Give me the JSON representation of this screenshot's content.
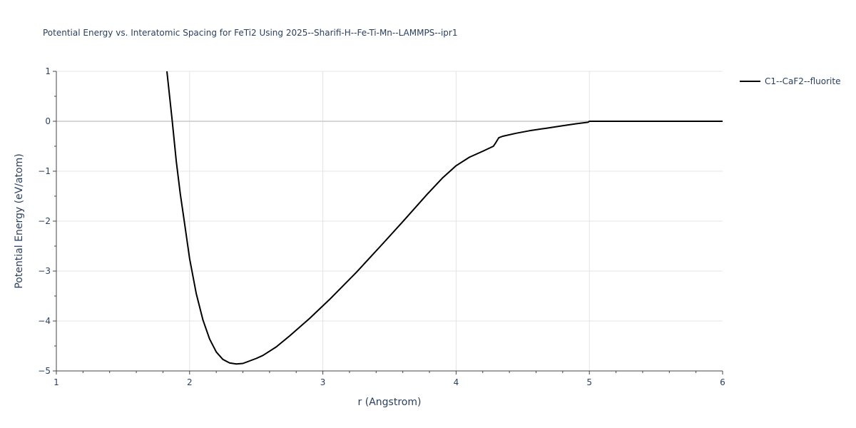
{
  "chart_data": {
    "type": "line",
    "title": "Potential Energy vs. Interatomic Spacing for FeTi2 Using 2025--Sharifi-H--Fe-Ti-Mn--LAMMPS--ipr1",
    "xlabel": "r (Angstrom)",
    "ylabel": "Potential Energy (eV/atom)",
    "xlim": [
      1,
      6
    ],
    "ylim": [
      -5,
      1
    ],
    "x_ticks": [
      1,
      2,
      3,
      4,
      5,
      6
    ],
    "x_tick_labels": [
      "1",
      "2",
      "3",
      "4",
      "5",
      "6"
    ],
    "y_ticks": [
      1,
      0,
      -1,
      -2,
      -3,
      -4,
      -5
    ],
    "y_tick_labels": [
      "1",
      "0",
      "−1",
      "−2",
      "−3",
      "−4",
      "−5"
    ],
    "grid": true,
    "legend_position": "top-right",
    "series": [
      {
        "name": "C1--CaF2--fluorite",
        "color": "#000000",
        "x": [
          1.83,
          1.87,
          1.9,
          1.93,
          1.96,
          2.0,
          2.05,
          2.1,
          2.15,
          2.2,
          2.25,
          2.3,
          2.35,
          2.4,
          2.45,
          2.5,
          2.55,
          2.65,
          2.75,
          2.9,
          3.05,
          3.25,
          3.45,
          3.6,
          3.78,
          3.9,
          4.0,
          4.1,
          4.2,
          4.28,
          4.3,
          4.32,
          4.35,
          4.45,
          4.55,
          4.7,
          4.8,
          4.9,
          4.99,
          5.0,
          5.25,
          5.5,
          5.75,
          6.0
        ],
        "y": [
          1.0,
          0.0,
          -0.8,
          -1.45,
          -2.0,
          -2.75,
          -3.45,
          -3.98,
          -4.36,
          -4.62,
          -4.77,
          -4.84,
          -4.86,
          -4.85,
          -4.8,
          -4.75,
          -4.69,
          -4.52,
          -4.3,
          -3.95,
          -3.57,
          -3.03,
          -2.45,
          -2.01,
          -1.47,
          -1.13,
          -0.89,
          -0.72,
          -0.6,
          -0.5,
          -0.42,
          -0.33,
          -0.3,
          -0.24,
          -0.19,
          -0.13,
          -0.09,
          -0.05,
          -0.02,
          0.0,
          0.0,
          0.0,
          0.0,
          0.0
        ]
      }
    ]
  }
}
